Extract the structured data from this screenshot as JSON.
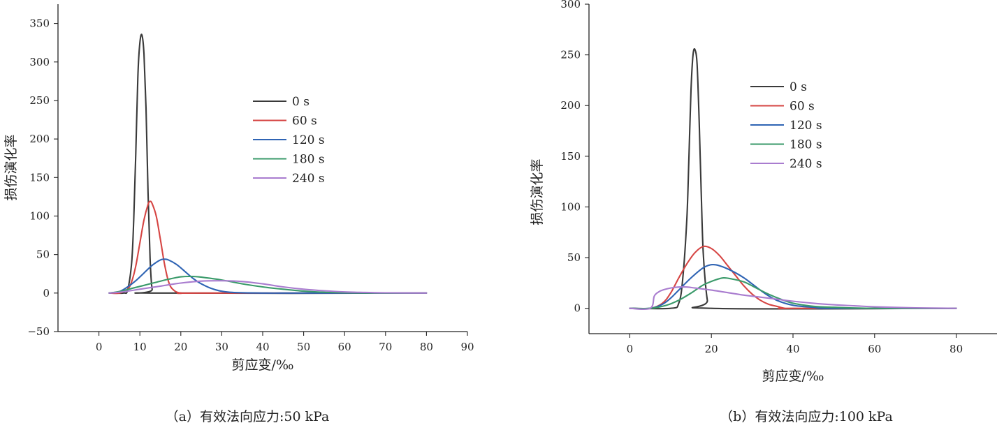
{
  "chart_data": [
    {
      "type": "line",
      "title": "",
      "caption": "（a）有效法向应力:50 kPa",
      "xlabel": "剪应变/‰",
      "ylabel": "损伤演化率",
      "xlim": [
        -10,
        90
      ],
      "ylim": [
        -50,
        375
      ],
      "x_ticks": [
        0,
        10,
        20,
        30,
        40,
        50,
        60,
        70,
        80,
        90
      ],
      "y_ticks": [
        -50,
        0,
        50,
        100,
        150,
        200,
        250,
        300,
        350
      ],
      "x_tick_labels": [
        "0",
        "10",
        "20",
        "30",
        "40",
        "50",
        "60",
        "70",
        "80",
        "90"
      ],
      "y_tick_labels": [
        "−50",
        "0",
        "50",
        "100",
        "150",
        "200",
        "250",
        "300",
        "350"
      ],
      "legend_position": "upper-middle",
      "series": [
        {
          "name": "0 s",
          "color": "#3a3a3a",
          "x": [
            2.5,
            6,
            7,
            8,
            8.5,
            9,
            9.5,
            10,
            10.5,
            11,
            11.5,
            12,
            12.5,
            13,
            14,
            80
          ],
          "y": [
            0,
            0,
            4,
            40,
            95,
            180,
            280,
            325,
            335,
            310,
            240,
            130,
            45,
            5,
            0,
            0
          ]
        },
        {
          "name": "60 s",
          "color": "#d64543",
          "x": [
            2.5,
            5,
            7,
            8,
            9,
            10,
            11,
            12,
            12.5,
            13,
            14,
            15,
            16,
            17,
            18,
            20,
            25,
            80
          ],
          "y": [
            0,
            0,
            5,
            15,
            35,
            65,
            95,
            115,
            119,
            116,
            100,
            70,
            38,
            15,
            5,
            0,
            0,
            0
          ]
        },
        {
          "name": "120 s",
          "color": "#2f64b4",
          "x": [
            2.5,
            5,
            7,
            9,
            11,
            13,
            15,
            16,
            17,
            19,
            21,
            23,
            25,
            28,
            32,
            40,
            50,
            80
          ],
          "y": [
            0,
            2,
            8,
            16,
            26,
            36,
            43,
            44,
            43,
            37,
            28,
            19,
            12,
            5,
            1,
            0,
            0,
            0
          ]
        },
        {
          "name": "180 s",
          "color": "#3a9a6a",
          "x": [
            2.5,
            5,
            8,
            11,
            14,
            17,
            20,
            23,
            26,
            30,
            35,
            40,
            45,
            50,
            55,
            60,
            70,
            80
          ],
          "y": [
            0,
            2,
            6,
            10,
            14,
            18,
            21,
            21.5,
            20,
            17,
            12,
            8,
            5,
            2.5,
            1,
            0.5,
            0,
            0
          ]
        },
        {
          "name": "240 s",
          "color": "#a97ccf",
          "x": [
            2.5,
            5,
            10,
            15,
            20,
            25,
            30,
            35,
            40,
            45,
            50,
            55,
            60,
            65,
            70,
            80
          ],
          "y": [
            0,
            1,
            5,
            9,
            13,
            15.5,
            16,
            15,
            12,
            8,
            5,
            3,
            1.5,
            0.8,
            0.3,
            0
          ]
        }
      ]
    },
    {
      "type": "line",
      "title": "",
      "caption": "（b）有效法向应力:100 kPa",
      "xlabel": "剪应变/‰",
      "ylabel": "损伤演化率",
      "xlim": [
        -10,
        90
      ],
      "ylim": [
        -25,
        300
      ],
      "x_ticks": [
        0,
        20,
        40,
        60,
        80
      ],
      "y_ticks": [
        0,
        50,
        100,
        150,
        200,
        250,
        300
      ],
      "x_tick_labels": [
        "0",
        "20",
        "40",
        "60",
        "80"
      ],
      "y_tick_labels": [
        "0",
        "50",
        "100",
        "150",
        "200",
        "250",
        "300"
      ],
      "legend_position": "upper-middle",
      "series": [
        {
          "name": "0 s",
          "color": "#3a3a3a",
          "x": [
            0,
            10,
            12,
            13,
            14,
            14.5,
            15,
            15.5,
            16,
            16.5,
            17,
            17.5,
            18,
            19,
            20,
            80
          ],
          "y": [
            0,
            0,
            5,
            30,
            90,
            150,
            215,
            250,
            255,
            240,
            185,
            115,
            55,
            8,
            0,
            0
          ]
        },
        {
          "name": "60 s",
          "color": "#d64543",
          "x": [
            0,
            5,
            8,
            10,
            12,
            14,
            16,
            18,
            20,
            22,
            24,
            26,
            28,
            30,
            32,
            34,
            36,
            38,
            40,
            80
          ],
          "y": [
            0,
            0,
            5,
            15,
            30,
            44,
            55,
            61,
            59,
            52,
            42,
            32,
            22,
            14,
            8,
            4,
            2,
            0,
            0,
            0
          ]
        },
        {
          "name": "120 s",
          "color": "#2f64b4",
          "x": [
            0,
            5,
            8,
            10,
            12,
            15,
            18,
            20,
            22,
            25,
            28,
            30,
            33,
            36,
            40,
            45,
            50,
            80
          ],
          "y": [
            0,
            0,
            4,
            10,
            18,
            30,
            40,
            43,
            42,
            37,
            30,
            24,
            15,
            8,
            3,
            1,
            0,
            0
          ]
        },
        {
          "name": "180 s",
          "color": "#3a9a6a",
          "x": [
            0,
            5,
            9,
            12,
            15,
            18,
            21,
            23,
            25,
            28,
            31,
            34,
            37,
            40,
            45,
            50,
            60,
            80
          ],
          "y": [
            0,
            0,
            3,
            8,
            15,
            23,
            28,
            30,
            29,
            26,
            20,
            14,
            9,
            5,
            2,
            1,
            0,
            0
          ]
        },
        {
          "name": "240 s",
          "color": "#a97ccf",
          "x": [
            0,
            5,
            6,
            7,
            8,
            10,
            12,
            14,
            16,
            18,
            20,
            24,
            28,
            32,
            36,
            40,
            45,
            50,
            55,
            60,
            70,
            80
          ],
          "y": [
            0,
            0,
            12,
            16,
            18,
            20,
            21,
            21,
            20,
            19,
            18,
            15.5,
            13,
            11,
            9,
            7,
            5,
            3.5,
            2.5,
            1.5,
            0.5,
            0
          ]
        }
      ]
    }
  ]
}
